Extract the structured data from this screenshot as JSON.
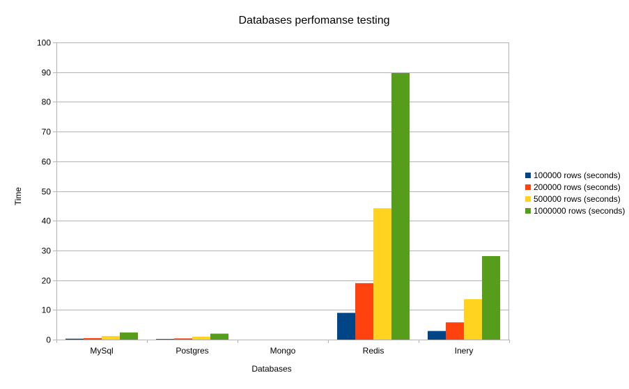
{
  "chart_data": {
    "type": "bar",
    "title": "Databases perfomanse testing",
    "xlabel": "Databases",
    "ylabel": "Time",
    "categories": [
      "MySql",
      "Postgres",
      "Mongo",
      "Redis",
      "Inery"
    ],
    "ylim": [
      0,
      100
    ],
    "yticks": [
      "0",
      "10",
      "20",
      "30",
      "40",
      "50",
      "60",
      "70",
      "80",
      "90",
      "100"
    ],
    "grid": true,
    "legend_position": "right",
    "series": [
      {
        "name": "100000 rows (seconds)",
        "color": "#004586",
        "values": [
          0.3,
          0.2,
          0,
          9.0,
          2.9
        ]
      },
      {
        "name": "200000 rows (seconds)",
        "color": "#ff420e",
        "values": [
          0.5,
          0.4,
          0,
          19.0,
          5.8
        ]
      },
      {
        "name": "500000 rows (seconds)",
        "color": "#ffd320",
        "values": [
          1.2,
          1.0,
          0,
          44.2,
          13.6
        ]
      },
      {
        "name": "1000000 rows (seconds)",
        "color": "#579d1c",
        "values": [
          2.4,
          2.0,
          0,
          89.7,
          28.1
        ]
      }
    ]
  }
}
